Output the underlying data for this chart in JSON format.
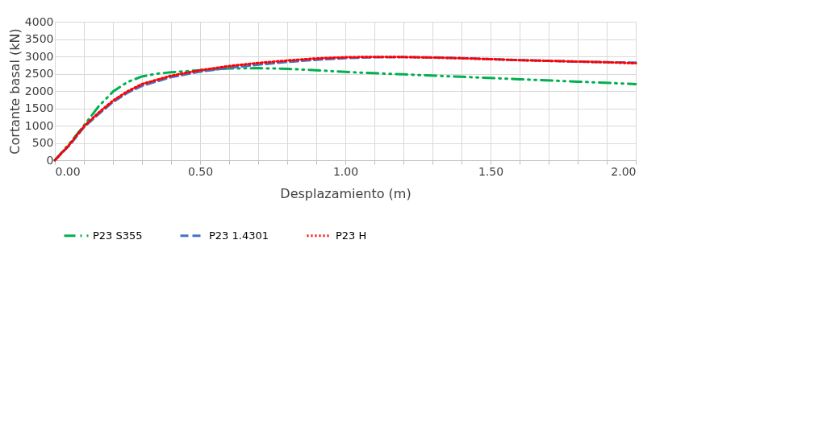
{
  "chart_data": {
    "type": "line",
    "xlabel": "Desplazamiento (m)",
    "ylabel": "Cortante basal (kN)",
    "xlim": [
      0,
      2
    ],
    "ylim": [
      0,
      4000
    ],
    "xticks": [
      {
        "value": 0,
        "label": "0.00"
      },
      {
        "value": 0.1,
        "label": null
      },
      {
        "value": 0.2,
        "label": null
      },
      {
        "value": 0.3,
        "label": null
      },
      {
        "value": 0.4,
        "label": null
      },
      {
        "value": 0.5,
        "label": "0.50"
      },
      {
        "value": 0.6,
        "label": null
      },
      {
        "value": 0.7,
        "label": null
      },
      {
        "value": 0.8,
        "label": null
      },
      {
        "value": 0.9,
        "label": null
      },
      {
        "value": 1,
        "label": "1.00"
      },
      {
        "value": 1.1,
        "label": null
      },
      {
        "value": 1.2,
        "label": null
      },
      {
        "value": 1.3,
        "label": null
      },
      {
        "value": 1.4,
        "label": null
      },
      {
        "value": 1.5,
        "label": "1.50"
      },
      {
        "value": 1.6,
        "label": null
      },
      {
        "value": 1.7,
        "label": null
      },
      {
        "value": 1.8,
        "label": null
      },
      {
        "value": 1.9,
        "label": null
      },
      {
        "value": 2,
        "label": "2.00"
      }
    ],
    "yticks": [
      0,
      500,
      1000,
      1500,
      2000,
      2500,
      3000,
      3500,
      4000
    ],
    "grid": true,
    "legend": "bottom",
    "marker": "none",
    "series": [
      {
        "name": "P23 S355",
        "color": "#00b050",
        "line_style": "dashdot",
        "x": [
          0,
          0.05,
          0.1,
          0.15,
          0.2,
          0.25,
          0.3,
          0.35,
          0.4,
          0.5,
          0.6,
          0.7,
          0.8,
          0.9,
          1.0,
          1.2,
          1.4,
          1.6,
          1.8,
          2.0
        ],
        "values": [
          0,
          480,
          1000,
          1550,
          1980,
          2260,
          2420,
          2500,
          2540,
          2600,
          2650,
          2660,
          2640,
          2600,
          2550,
          2480,
          2410,
          2340,
          2270,
          2200
        ]
      },
      {
        "name": "P23 1.4301",
        "color": "#4472c4",
        "line_style": "dashed",
        "x": [
          0,
          0.05,
          0.1,
          0.15,
          0.2,
          0.25,
          0.3,
          0.4,
          0.5,
          0.6,
          0.7,
          0.8,
          0.9,
          1.0,
          1.1,
          1.2,
          1.3,
          1.4,
          1.5,
          1.6,
          1.7,
          1.8,
          1.9,
          2.0
        ],
        "values": [
          0,
          430,
          950,
          1330,
          1680,
          1950,
          2150,
          2400,
          2560,
          2670,
          2760,
          2840,
          2900,
          2950,
          2975,
          2980,
          2970,
          2950,
          2920,
          2890,
          2870,
          2850,
          2830,
          2820
        ]
      },
      {
        "name": "P23 H",
        "color": "#ff0000",
        "line_style": "dotted",
        "x": [
          0,
          0.05,
          0.1,
          0.15,
          0.2,
          0.25,
          0.3,
          0.4,
          0.5,
          0.6,
          0.7,
          0.8,
          0.9,
          1.0,
          1.1,
          1.2,
          1.3,
          1.4,
          1.5,
          1.6,
          1.7,
          1.8,
          1.9,
          2.0
        ],
        "values": [
          0,
          450,
          980,
          1370,
          1720,
          1990,
          2200,
          2440,
          2600,
          2720,
          2810,
          2880,
          2940,
          2975,
          2985,
          2980,
          2965,
          2945,
          2920,
          2890,
          2870,
          2850,
          2830,
          2800
        ]
      }
    ]
  }
}
